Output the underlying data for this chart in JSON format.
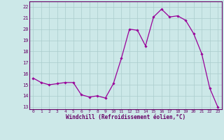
{
  "hours": [
    0,
    1,
    2,
    3,
    4,
    5,
    6,
    7,
    8,
    9,
    10,
    11,
    12,
    13,
    14,
    15,
    16,
    17,
    18,
    19,
    20,
    21,
    22,
    23
  ],
  "values": [
    15.6,
    15.2,
    15.0,
    15.1,
    15.2,
    15.2,
    14.1,
    13.9,
    14.0,
    13.8,
    15.1,
    17.4,
    20.0,
    19.9,
    18.5,
    21.1,
    21.8,
    21.1,
    21.2,
    20.8,
    19.6,
    17.8,
    14.7,
    13.0
  ],
  "line_color": "#990099",
  "marker": "D",
  "marker_size": 1.8,
  "bg_color": "#cce8e8",
  "grid_color": "#aacccc",
  "xlabel": "Windchill (Refroidissement éolien,°C)",
  "ylabel": "",
  "ylim": [
    12.8,
    22.5
  ],
  "yticks": [
    13,
    14,
    15,
    16,
    17,
    18,
    19,
    20,
    21,
    22
  ],
  "xticks": [
    0,
    1,
    2,
    3,
    4,
    5,
    6,
    7,
    8,
    9,
    10,
    11,
    12,
    13,
    14,
    15,
    16,
    17,
    18,
    19,
    20,
    21,
    22,
    23
  ],
  "title_color": "#990099",
  "xlabel_color": "#660066",
  "tick_color": "#660066",
  "spine_color": "#660066"
}
